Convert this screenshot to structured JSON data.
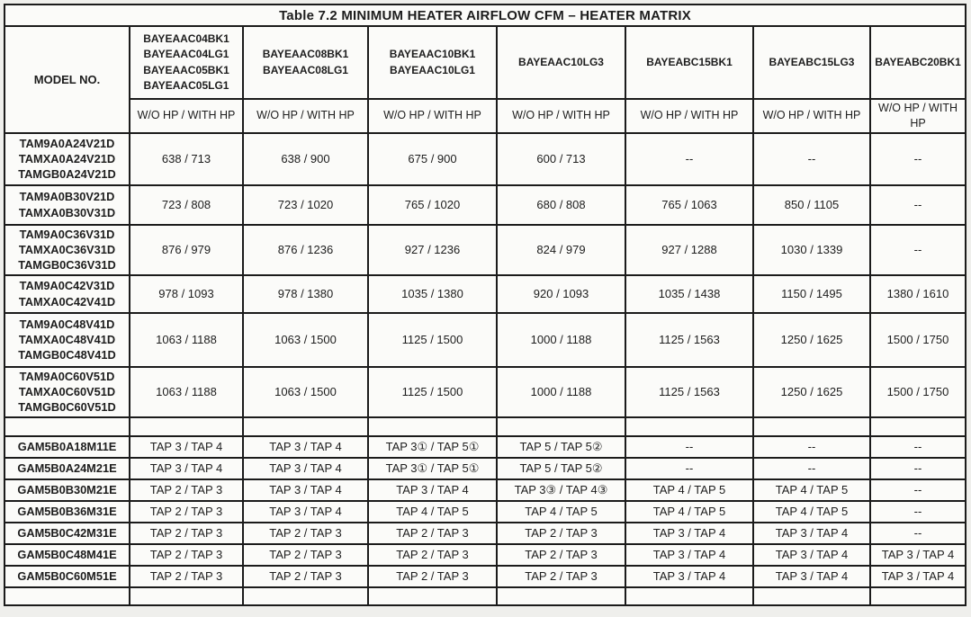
{
  "title": "Table 7.2 MINIMUM HEATER AIRFLOW CFM – HEATER MATRIX",
  "table": {
    "model_col_header": "MODEL NO.",
    "heater_columns": [
      {
        "models": [
          "BAYEAAC04BK1",
          "BAYEAAC04LG1",
          "BAYEAAC05BK1",
          "BAYEAAC05LG1"
        ],
        "subheader": "W/O HP / WITH HP"
      },
      {
        "models": [
          "BAYEAAC08BK1",
          "BAYEAAC08LG1"
        ],
        "subheader": "W/O HP / WITH HP"
      },
      {
        "models": [
          "BAYEAAC10BK1",
          "BAYEAAC10LG1"
        ],
        "subheader": "W/O HP / WITH HP"
      },
      {
        "models": [
          "BAYEAAC10LG3"
        ],
        "subheader": "W/O HP / WITH HP"
      },
      {
        "models": [
          "BAYEABC15BK1"
        ],
        "subheader": "W/O HP / WITH HP"
      },
      {
        "models": [
          "BAYEABC15LG3"
        ],
        "subheader": "W/O HP / WITH HP"
      },
      {
        "models": [
          "BAYEABC20BK1"
        ],
        "subheader": "W/O HP / WITH HP"
      }
    ],
    "rows": [
      {
        "models": [
          "TAM9A0A24V21D",
          "TAMXA0A24V21D",
          "TAMGB0A24V21D"
        ],
        "values": [
          "638 / 713",
          "638 / 900",
          "675 / 900",
          "600 / 713",
          "--",
          "--",
          "--"
        ]
      },
      {
        "models": [
          "TAM9A0B30V21D",
          "TAMXA0B30V31D"
        ],
        "values": [
          "723 / 808",
          "723 / 1020",
          "765 / 1020",
          "680 / 808",
          "765 / 1063",
          "850 / 1105",
          "--"
        ]
      },
      {
        "models": [
          "TAM9A0C36V31D",
          "TAMXA0C36V31D",
          "TAMGB0C36V31D"
        ],
        "values": [
          "876 / 979",
          "876 / 1236",
          "927 / 1236",
          "824 / 979",
          "927 / 1288",
          "1030 / 1339",
          "--"
        ]
      },
      {
        "models": [
          "TAM9A0C42V31D",
          "TAMXA0C42V41D"
        ],
        "values": [
          "978 / 1093",
          "978 / 1380",
          "1035 / 1380",
          "920 / 1093",
          "1035 / 1438",
          "1150 / 1495",
          "1380 / 1610"
        ]
      },
      {
        "models": [
          "TAM9A0C48V41D",
          "TAMXA0C48V41D",
          "TAMGB0C48V41D"
        ],
        "values": [
          "1063 / 1188",
          "1063 / 1500",
          "1125 / 1500",
          "1000 / 1188",
          "1125 / 1563",
          "1250 / 1625",
          "1500 / 1750"
        ]
      },
      {
        "models": [
          "TAM9A0C60V51D",
          "TAMXA0C60V51D",
          "TAMGB0C60V51D"
        ],
        "values": [
          "1063 / 1188",
          "1063 / 1500",
          "1125 / 1500",
          "1000 / 1188",
          "1125 / 1563",
          "1250 / 1625",
          "1500 / 1750"
        ]
      },
      {
        "models": [],
        "values": [
          "",
          "",
          "",
          "",
          "",
          "",
          ""
        ]
      },
      {
        "models": [
          "GAM5B0A18M11E"
        ],
        "values": [
          "TAP 3 / TAP 4",
          "TAP 3 / TAP 4",
          "TAP 3① / TAP 5①",
          "TAP 5 / TAP 5②",
          "--",
          "--",
          "--"
        ]
      },
      {
        "models": [
          "GAM5B0A24M21E"
        ],
        "values": [
          "TAP 3 / TAP 4",
          "TAP 3 / TAP 4",
          "TAP 3① / TAP 5①",
          "TAP 5 / TAP 5②",
          "--",
          "--",
          "--"
        ]
      },
      {
        "models": [
          "GAM5B0B30M21E"
        ],
        "values": [
          "TAP 2 / TAP 3",
          "TAP 3 / TAP 4",
          "TAP 3 / TAP 4",
          "TAP 3③ / TAP 4③",
          "TAP 4 / TAP 5",
          "TAP 4 / TAP 5",
          "--"
        ]
      },
      {
        "models": [
          "GAM5B0B36M31E"
        ],
        "values": [
          "TAP 2 / TAP 3",
          "TAP 3 / TAP 4",
          "TAP 4 / TAP 5",
          "TAP 4 / TAP 5",
          "TAP 4 / TAP 5",
          "TAP 4 / TAP 5",
          "--"
        ]
      },
      {
        "models": [
          "GAM5B0C42M31E"
        ],
        "values": [
          "TAP 2 / TAP 3",
          "TAP 2 / TAP 3",
          "TAP 2 / TAP 3",
          "TAP 2 / TAP 3",
          "TAP 3 / TAP 4",
          "TAP 3 / TAP 4",
          "--"
        ]
      },
      {
        "models": [
          "GAM5B0C48M41E"
        ],
        "values": [
          "TAP 2 / TAP 3",
          "TAP 2 / TAP 3",
          "TAP 2 / TAP 3",
          "TAP 2 / TAP 3",
          "TAP 3 / TAP 4",
          "TAP 3 / TAP 4",
          "TAP 3 / TAP 4"
        ]
      },
      {
        "models": [
          "GAM5B0C60M51E"
        ],
        "values": [
          "TAP 2 / TAP 3",
          "TAP 2 / TAP 3",
          "TAP 2 / TAP 3",
          "TAP 2 / TAP 3",
          "TAP 3 / TAP 4",
          "TAP 3 / TAP 4",
          "TAP 3 / TAP 4"
        ]
      },
      {
        "models": [],
        "values": [
          "",
          "",
          "",
          "",
          "",
          "",
          ""
        ]
      }
    ]
  }
}
